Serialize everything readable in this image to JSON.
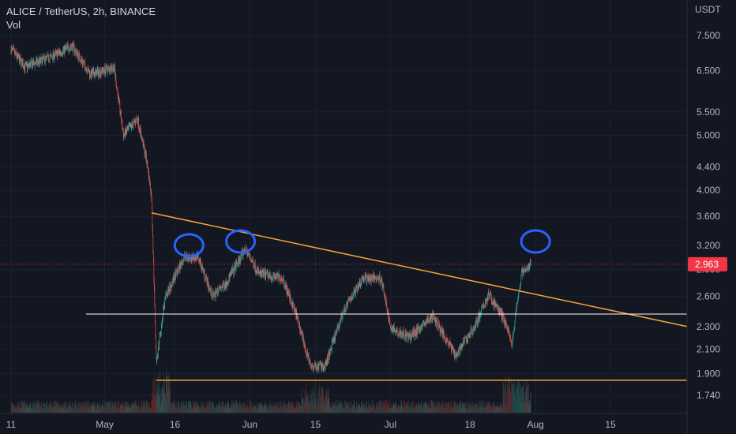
{
  "header": {
    "symbol_line": "ALICE / TetherUS, 2h, BINANCE",
    "volume_label": "Vol"
  },
  "price_axis": {
    "currency": "USDT",
    "ticks": [
      "7.500",
      "6.500",
      "5.500",
      "5.000",
      "4.400",
      "4.000",
      "3.600",
      "3.200",
      "2.900",
      "2.600",
      "2.300",
      "2.100",
      "1.900",
      "1.740"
    ],
    "last_price": "2.963"
  },
  "time_axis": {
    "ticks": [
      "11",
      "May",
      "16",
      "Jun",
      "15",
      "Jul",
      "18",
      "Aug",
      "15"
    ]
  },
  "colors": {
    "background": "#131722",
    "up": "#26a69a",
    "down": "#ef5350",
    "trendline": "#f7a23a",
    "support": "#ffffff",
    "annotation": "#2962ff",
    "last_price": "#f23645"
  },
  "chart_data": {
    "type": "candlestick",
    "title": "ALICE / TetherUS, 2h, BINANCE",
    "y_scale": "log",
    "ylim": [
      1.65,
      8.6
    ],
    "price_anchors": [
      {
        "date": "2022-04-11",
        "price": 7.1
      },
      {
        "date": "2022-04-14",
        "price": 6.6
      },
      {
        "date": "2022-04-20",
        "price": 6.9
      },
      {
        "date": "2022-04-24",
        "price": 7.2
      },
      {
        "date": "2022-04-28",
        "price": 6.4
      },
      {
        "date": "2022-05-03",
        "price": 6.6
      },
      {
        "date": "2022-05-05",
        "price": 5.0
      },
      {
        "date": "2022-05-08",
        "price": 5.35
      },
      {
        "date": "2022-05-10",
        "price": 4.5
      },
      {
        "date": "2022-05-11",
        "price": 3.9
      },
      {
        "date": "2022-05-12",
        "price": 2.0
      },
      {
        "date": "2022-05-14",
        "price": 2.6
      },
      {
        "date": "2022-05-18",
        "price": 3.05
      },
      {
        "date": "2022-05-21",
        "price": 3.05
      },
      {
        "date": "2022-05-24",
        "price": 2.6
      },
      {
        "date": "2022-05-27",
        "price": 2.75
      },
      {
        "date": "2022-05-31",
        "price": 3.15
      },
      {
        "date": "2022-06-03",
        "price": 2.85
      },
      {
        "date": "2022-06-08",
        "price": 2.8
      },
      {
        "date": "2022-06-11",
        "price": 2.4
      },
      {
        "date": "2022-06-14",
        "price": 1.95
      },
      {
        "date": "2022-06-17",
        "price": 1.95
      },
      {
        "date": "2022-06-21",
        "price": 2.45
      },
      {
        "date": "2022-06-25",
        "price": 2.8
      },
      {
        "date": "2022-06-29",
        "price": 2.8
      },
      {
        "date": "2022-07-01",
        "price": 2.3
      },
      {
        "date": "2022-07-05",
        "price": 2.2
      },
      {
        "date": "2022-07-10",
        "price": 2.4
      },
      {
        "date": "2022-07-15",
        "price": 2.05
      },
      {
        "date": "2022-07-19",
        "price": 2.3
      },
      {
        "date": "2022-07-22",
        "price": 2.62
      },
      {
        "date": "2022-07-25",
        "price": 2.4
      },
      {
        "date": "2022-07-27",
        "price": 2.15
      },
      {
        "date": "2022-07-28",
        "price": 2.5
      },
      {
        "date": "2022-07-29",
        "price": 2.85
      },
      {
        "date": "2022-07-31",
        "price": 2.963
      }
    ],
    "trendline": {
      "from": {
        "date": "2022-05-11",
        "price": 3.65
      },
      "to": {
        "date": "2022-08-25",
        "price": 2.38
      }
    },
    "support_line": {
      "from_date": "2022-04-27",
      "price": 2.42
    },
    "base_line": {
      "from_date": "2022-05-12",
      "price": 1.85
    },
    "annotations": [
      {
        "type": "circle",
        "date": "2022-05-19",
        "price": 3.2
      },
      {
        "type": "circle",
        "date": "2022-05-30",
        "price": 3.25
      },
      {
        "type": "circle",
        "date": "2022-08-01",
        "price": 3.25
      }
    ]
  }
}
